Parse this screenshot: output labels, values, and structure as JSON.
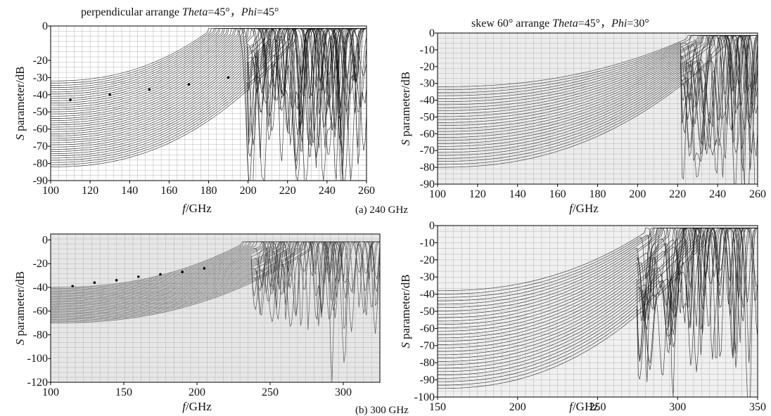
{
  "captions": {
    "a": "(a) 240 GHz",
    "b": "(b) 300 GHz"
  },
  "chart_data": [
    {
      "id": "a-left",
      "type": "line",
      "title_parts": [
        "perpendicular arrange ",
        "Theta",
        "=45°，",
        "Phi",
        "=45°"
      ],
      "title_italic": [
        false,
        true,
        false,
        true,
        false
      ],
      "xlabel_parts": [
        "f",
        "/GHz"
      ],
      "ylabel_parts": [
        "S",
        " parameter/dB"
      ],
      "xlim": [
        100,
        260
      ],
      "ylim": [
        -90,
        0
      ],
      "xticks": [
        100,
        120,
        140,
        160,
        180,
        200,
        220,
        240,
        260
      ],
      "yticks": [
        0,
        -10,
        -20,
        -30,
        -40,
        -50,
        -60,
        -70,
        -80,
        -90
      ],
      "ytick_labels": [
        "0",
        "-20",
        "-30",
        "-40",
        "-50",
        "-60",
        "-70",
        "-80",
        "-90"
      ],
      "ytick_values": [
        0,
        -20,
        -30,
        -40,
        -50,
        -60,
        -70,
        -80,
        -90
      ],
      "grid": true,
      "background": "#ffffff",
      "line_color": "#111111",
      "series_summary": {
        "count": 40,
        "start_min": -82,
        "start_max": -32,
        "passband_start": 180,
        "passband_end": 260,
        "resonance_start": 200
      },
      "markers": [
        {
          "x": 110,
          "y": -43
        },
        {
          "x": 130,
          "y": -40
        },
        {
          "x": 150,
          "y": -37
        },
        {
          "x": 170,
          "y": -34
        },
        {
          "x": 190,
          "y": -30
        }
      ]
    },
    {
      "id": "a-right",
      "type": "line",
      "title_parts": [
        "skew 60° arrange ",
        "Theta",
        "=45°，",
        "Phi",
        "=30°"
      ],
      "title_italic": [
        false,
        true,
        false,
        true,
        false
      ],
      "xlabel_parts": [
        "f",
        "/GHz"
      ],
      "ylabel_parts": [
        "S",
        " parameter/dB"
      ],
      "xlim": [
        100,
        260
      ],
      "ylim": [
        -90,
        0
      ],
      "xticks": [
        100,
        120,
        140,
        160,
        180,
        200,
        220,
        240,
        260
      ],
      "ytick_labels": [
        "0",
        "-10",
        "-20",
        "-30",
        "-40",
        "-50",
        "-60",
        "-70",
        "-80",
        "-90"
      ],
      "ytick_values": [
        0,
        -10,
        -20,
        -30,
        -40,
        -50,
        -60,
        -70,
        -80,
        -90
      ],
      "grid": true,
      "background": "#ececec",
      "line_color": "#222222",
      "series_summary": {
        "count": 28,
        "start_min": -80,
        "start_max": -32,
        "passband_start": 225,
        "passband_end": 260,
        "resonance_start": 222
      }
    },
    {
      "id": "b-left",
      "type": "line",
      "xlabel_parts": [
        "f",
        "/GHz"
      ],
      "ylabel_parts": [
        "S",
        " parameter/dB"
      ],
      "xlim": [
        100,
        325
      ],
      "ylim": [
        -120,
        5
      ],
      "xticks": [
        100,
        150,
        200,
        250,
        300
      ],
      "ytick_labels": [
        "0",
        "-20",
        "-40",
        "-60",
        "-80",
        "-100",
        "-120"
      ],
      "ytick_values": [
        0,
        -20,
        -40,
        -60,
        -80,
        -100,
        -120
      ],
      "grid": true,
      "background": "#e6e6e6",
      "line_color": "#3a3a3a",
      "series_summary": {
        "count": 30,
        "start_min": -70,
        "start_max": -40,
        "passband_start": 230,
        "passband_end": 320,
        "resonance_start": 238
      },
      "markers": [
        {
          "x": 115,
          "y": -39
        },
        {
          "x": 130,
          "y": -36
        },
        {
          "x": 145,
          "y": -34
        },
        {
          "x": 160,
          "y": -31
        },
        {
          "x": 175,
          "y": -29
        },
        {
          "x": 190,
          "y": -27
        },
        {
          "x": 205,
          "y": -24
        }
      ]
    },
    {
      "id": "b-right",
      "type": "line",
      "xlabel_parts": [
        "f",
        "/GHz"
      ],
      "ylabel_parts": [
        "S",
        " parameter/dB"
      ],
      "xlim": [
        150,
        350
      ],
      "ylim": [
        -100,
        0
      ],
      "xticks": [
        150,
        200,
        250,
        300,
        350
      ],
      "ytick_labels": [
        "0",
        "-10",
        "-20",
        "-30",
        "-40",
        "-50",
        "-60",
        "-70",
        "-80",
        "-90",
        "-100"
      ],
      "ytick_values": [
        0,
        -10,
        -20,
        -30,
        -40,
        -50,
        -60,
        -70,
        -80,
        -90,
        -100
      ],
      "grid": true,
      "background": "#f0f0f0",
      "line_color": "#151515",
      "series_summary": {
        "count": 30,
        "start_min": -95,
        "start_max": -38,
        "passband_start": 280,
        "passband_end": 350,
        "resonance_start": 275
      }
    }
  ]
}
